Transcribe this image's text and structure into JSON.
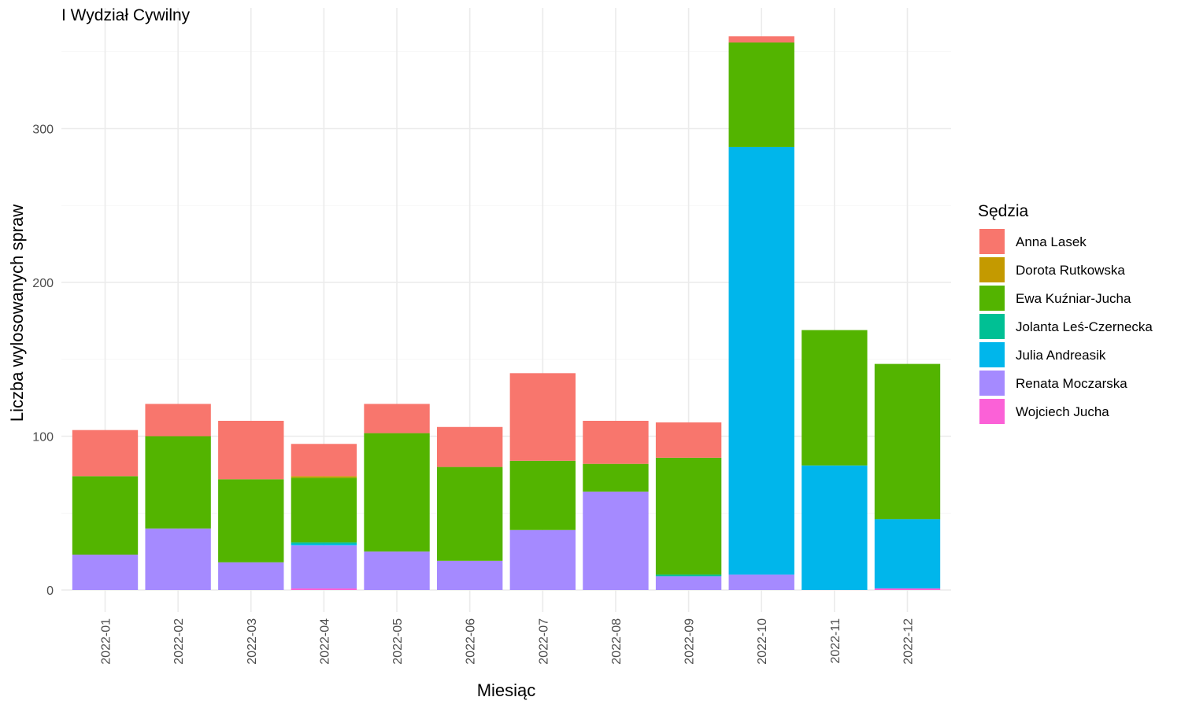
{
  "chart_data": {
    "type": "bar",
    "stacked": true,
    "title": "I Wydział Cywilny",
    "xlabel": "Miesiąc",
    "ylabel": "Liczba wylosowanych spraw",
    "ylim": [
      0,
      360
    ],
    "yticks": [
      0,
      100,
      200,
      300
    ],
    "grid": true,
    "legend_title": "Sędzia",
    "legend_position": "right",
    "categories": [
      "2022-01",
      "2022-02",
      "2022-03",
      "2022-04",
      "2022-05",
      "2022-06",
      "2022-07",
      "2022-08",
      "2022-09",
      "2022-10",
      "2022-11",
      "2022-12"
    ],
    "series": [
      {
        "name": "Anna Lasek",
        "color": "#F8766D",
        "values": [
          30,
          21,
          38,
          21,
          19,
          26,
          57,
          28,
          23,
          4,
          0,
          0
        ]
      },
      {
        "name": "Dorota Rutkowska",
        "color": "#C49A00",
        "values": [
          0,
          0,
          0,
          1,
          0,
          0,
          0,
          0,
          0,
          0,
          0,
          0
        ]
      },
      {
        "name": "Ewa Kuźniar-Jucha",
        "color": "#53B400",
        "values": [
          51,
          60,
          54,
          42,
          77,
          61,
          45,
          18,
          76,
          68,
          88,
          101
        ]
      },
      {
        "name": "Jolanta Leś-Czernecka",
        "color": "#00C094",
        "values": [
          0,
          0,
          0,
          1,
          0,
          0,
          0,
          0,
          1,
          0,
          0,
          0
        ]
      },
      {
        "name": "Julia Andreasik",
        "color": "#00B6EB",
        "values": [
          0,
          0,
          0,
          1,
          0,
          0,
          0,
          0,
          0,
          278,
          81,
          45
        ]
      },
      {
        "name": "Renata Moczarska",
        "color": "#A58AFF",
        "values": [
          23,
          40,
          18,
          28,
          25,
          19,
          39,
          64,
          9,
          10,
          0,
          0
        ]
      },
      {
        "name": "Wojciech Jucha",
        "color": "#FB61D7",
        "values": [
          0,
          0,
          0,
          1,
          0,
          0,
          0,
          0,
          0,
          0,
          0,
          1
        ]
      }
    ]
  }
}
